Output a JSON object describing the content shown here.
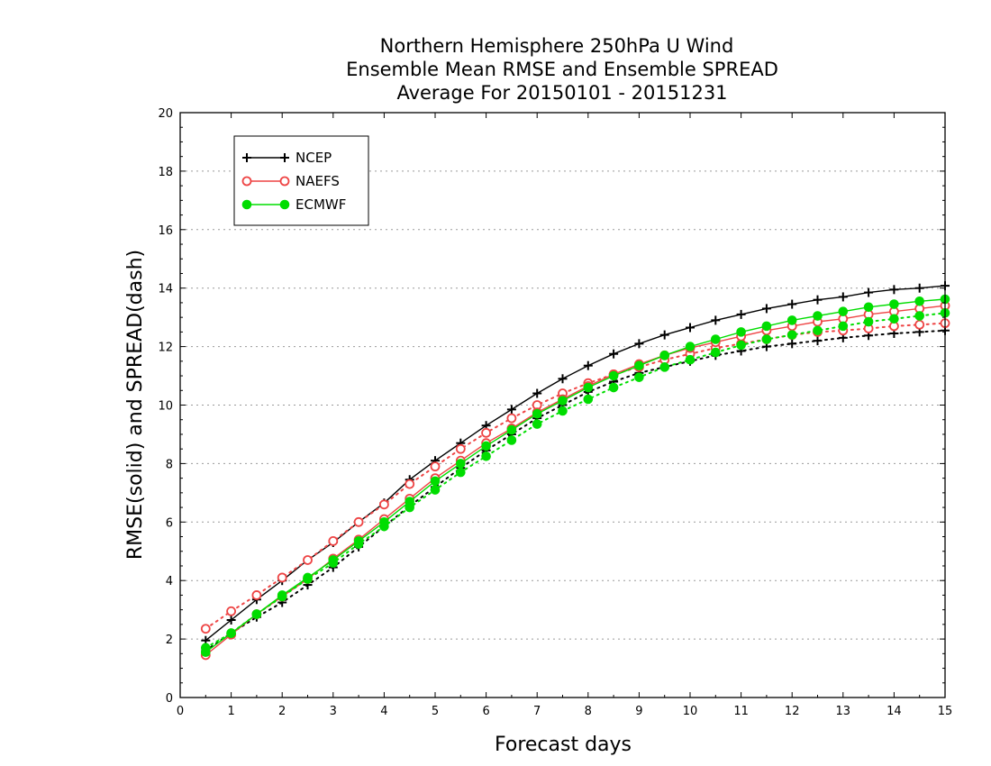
{
  "chart_data": {
    "type": "line",
    "title": [
      "Northern Hemisphere 250hPa U Wind",
      "Ensemble Mean RMSE and Ensemble SPREAD",
      "Average For 20150101 - 20151231"
    ],
    "xlabel": "Forecast days",
    "ylabel": "RMSE(solid) and SPREAD(dash)",
    "xlim": [
      0,
      15
    ],
    "ylim": [
      0,
      20
    ],
    "xticks": [
      "0",
      "1",
      "2",
      "3",
      "4",
      "5",
      "6",
      "7",
      "8",
      "9",
      "10",
      "11",
      "12",
      "13",
      "14",
      "15"
    ],
    "yticks": [
      "0",
      "2",
      "4",
      "6",
      "8",
      "10",
      "12",
      "14",
      "16",
      "18",
      "20"
    ],
    "grid": "horizontal dotted",
    "legend_position": "top-left",
    "x": [
      0.5,
      1,
      1.5,
      2,
      2.5,
      3,
      3.5,
      4,
      4.5,
      5,
      5.5,
      6,
      6.5,
      7,
      7.5,
      8,
      8.5,
      9,
      9.5,
      10,
      10.5,
      11,
      11.5,
      12,
      12.5,
      13,
      13.5,
      14,
      14.5,
      15
    ],
    "series": [
      {
        "name": "NCEP",
        "color": "#000000",
        "marker": "plus",
        "rmse": [
          1.95,
          2.65,
          3.35,
          4.0,
          4.7,
          5.3,
          6.0,
          6.65,
          7.45,
          8.1,
          8.7,
          9.3,
          9.85,
          10.4,
          10.9,
          11.35,
          11.75,
          12.1,
          12.4,
          12.65,
          12.9,
          13.1,
          13.3,
          13.45,
          13.6,
          13.7,
          13.85,
          13.95,
          14.0,
          14.08
        ],
        "spread": [
          1.6,
          2.2,
          2.75,
          3.25,
          3.85,
          4.45,
          5.15,
          5.85,
          6.55,
          7.2,
          7.85,
          8.45,
          9.0,
          9.55,
          10.0,
          10.45,
          10.8,
          11.1,
          11.3,
          11.5,
          11.7,
          11.85,
          12.0,
          12.1,
          12.2,
          12.3,
          12.38,
          12.45,
          12.5,
          12.55
        ]
      },
      {
        "name": "NAEFS",
        "color": "#ee4444",
        "marker": "open-circle",
        "rmse": [
          1.45,
          2.15,
          2.85,
          3.45,
          4.05,
          4.75,
          5.4,
          6.1,
          6.8,
          7.5,
          8.1,
          8.7,
          9.2,
          9.75,
          10.2,
          10.65,
          11.05,
          11.4,
          11.7,
          11.95,
          12.15,
          12.35,
          12.55,
          12.7,
          12.85,
          12.95,
          13.1,
          13.2,
          13.3,
          13.4
        ],
        "spread": [
          2.35,
          2.95,
          3.5,
          4.1,
          4.7,
          5.35,
          6.0,
          6.6,
          7.3,
          7.9,
          8.5,
          9.05,
          9.55,
          10.0,
          10.4,
          10.75,
          11.05,
          11.3,
          11.55,
          11.75,
          11.95,
          12.1,
          12.25,
          12.4,
          12.5,
          12.55,
          12.62,
          12.7,
          12.75,
          12.8
        ]
      },
      {
        "name": "ECMWF",
        "color": "#00dd00",
        "marker": "filled-circle",
        "rmse": [
          1.55,
          2.2,
          2.85,
          3.5,
          4.1,
          4.7,
          5.35,
          6.0,
          6.7,
          7.4,
          8.0,
          8.6,
          9.15,
          9.7,
          10.15,
          10.6,
          11.0,
          11.35,
          11.7,
          12.0,
          12.25,
          12.5,
          12.7,
          12.9,
          13.05,
          13.2,
          13.35,
          13.45,
          13.55,
          13.62
        ],
        "spread": [
          1.7,
          2.2,
          2.85,
          3.45,
          4.05,
          4.6,
          5.25,
          5.85,
          6.5,
          7.1,
          7.7,
          8.25,
          8.8,
          9.35,
          9.8,
          10.2,
          10.6,
          10.95,
          11.3,
          11.55,
          11.8,
          12.05,
          12.25,
          12.4,
          12.55,
          12.7,
          12.85,
          12.95,
          13.05,
          13.15
        ]
      }
    ]
  }
}
